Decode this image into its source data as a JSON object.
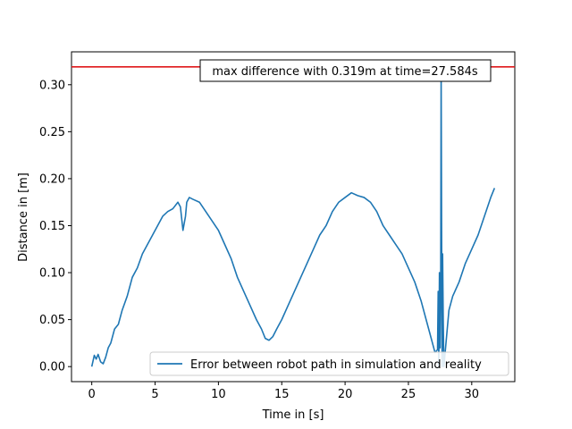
{
  "chart_data": {
    "type": "line",
    "xlabel": "Time in [s]",
    "ylabel": "Distance in [m]",
    "xlim": [
      -1.6,
      33.4
    ],
    "ylim": [
      -0.016,
      0.335
    ],
    "xticks": [
      0,
      5,
      10,
      15,
      20,
      25,
      30
    ],
    "yticks": [
      0.0,
      0.05,
      0.1,
      0.15,
      0.2,
      0.25,
      0.3
    ],
    "ytick_labels": [
      "0.00",
      "0.05",
      "0.10",
      "0.15",
      "0.20",
      "0.25",
      "0.30"
    ],
    "grid": false,
    "legend_position": "lower-right",
    "annotation": {
      "text": "max difference with 0.319m at time=27.584s",
      "time": 27.584,
      "value": 0.319
    },
    "threshold_line": {
      "y": 0.319,
      "color": "#e0181b"
    },
    "series": [
      {
        "name": "Error between robot path in simulation and reality",
        "color": "#1f77b4",
        "x": [
          0.0,
          0.2,
          0.35,
          0.5,
          0.7,
          0.9,
          1.1,
          1.3,
          1.5,
          1.8,
          2.1,
          2.4,
          2.8,
          3.2,
          3.6,
          4.0,
          4.4,
          4.8,
          5.2,
          5.6,
          6.0,
          6.4,
          6.8,
          7.0,
          7.2,
          7.4,
          7.5,
          7.7,
          8.0,
          8.5,
          9.0,
          9.5,
          10.0,
          10.5,
          11.0,
          11.5,
          12.0,
          12.5,
          13.0,
          13.4,
          13.7,
          14.0,
          14.3,
          14.6,
          15.0,
          15.5,
          16.0,
          16.5,
          17.0,
          17.5,
          18.0,
          18.5,
          19.0,
          19.5,
          20.0,
          20.5,
          21.0,
          21.5,
          22.0,
          22.5,
          23.0,
          23.5,
          24.0,
          24.5,
          25.0,
          25.5,
          26.0,
          26.3,
          26.6,
          26.9,
          27.1,
          27.3,
          27.35,
          27.4,
          27.45,
          27.5,
          27.55,
          27.584,
          27.62,
          27.66,
          27.7,
          27.75,
          27.8,
          27.9,
          28.0,
          28.2,
          28.5,
          29.0,
          29.5,
          30.0,
          30.5,
          31.0,
          31.5,
          31.8
        ],
        "y": [
          0.0,
          0.012,
          0.008,
          0.013,
          0.005,
          0.003,
          0.01,
          0.02,
          0.025,
          0.04,
          0.045,
          0.06,
          0.075,
          0.095,
          0.105,
          0.12,
          0.13,
          0.14,
          0.15,
          0.16,
          0.165,
          0.168,
          0.175,
          0.17,
          0.145,
          0.16,
          0.175,
          0.18,
          0.178,
          0.175,
          0.165,
          0.155,
          0.145,
          0.13,
          0.115,
          0.095,
          0.08,
          0.065,
          0.05,
          0.04,
          0.03,
          0.028,
          0.032,
          0.04,
          0.05,
          0.065,
          0.08,
          0.095,
          0.11,
          0.125,
          0.14,
          0.15,
          0.165,
          0.175,
          0.18,
          0.185,
          0.182,
          0.18,
          0.175,
          0.165,
          0.15,
          0.14,
          0.13,
          0.12,
          0.105,
          0.09,
          0.07,
          0.055,
          0.04,
          0.025,
          0.015,
          0.018,
          0.08,
          0.0,
          0.1,
          0.02,
          0.09,
          0.319,
          0.15,
          0.0,
          0.12,
          0.05,
          0.0,
          0.015,
          0.03,
          0.06,
          0.075,
          0.09,
          0.11,
          0.125,
          0.14,
          0.16,
          0.18,
          0.19
        ]
      }
    ]
  }
}
